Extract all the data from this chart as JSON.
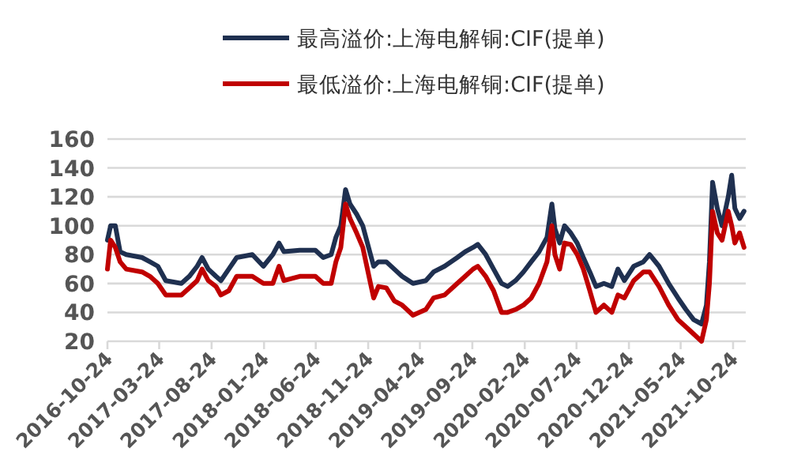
{
  "chart_data": {
    "type": "line",
    "legend": "top",
    "grid": "y",
    "xlim": [
      "2016-10-24",
      "2021-11-30"
    ],
    "ylim": [
      20,
      160
    ],
    "yticks": [
      20,
      40,
      60,
      80,
      100,
      120,
      140,
      160
    ],
    "xticks": [
      "2016-10-24",
      "2017-03-24",
      "2017-08-24",
      "2018-01-24",
      "2018-06-24",
      "2018-11-24",
      "2019-04-24",
      "2019-09-24",
      "2020-02-24",
      "2020-07-24",
      "2020-12-24",
      "2021-05-24",
      "2021-10-24"
    ],
    "x": [
      "2016-10-24",
      "2016-11-02",
      "2016-11-16",
      "2016-11-30",
      "2016-12-18",
      "2017-02-02",
      "2017-02-25",
      "2017-03-20",
      "2017-04-12",
      "2017-05-28",
      "2017-06-20",
      "2017-07-13",
      "2017-07-27",
      "2017-08-14",
      "2017-09-06",
      "2017-09-20",
      "2017-10-13",
      "2017-11-05",
      "2017-12-21",
      "2018-01-22",
      "2018-02-19",
      "2018-03-09",
      "2018-03-23",
      "2018-05-08",
      "2018-06-23",
      "2018-07-16",
      "2018-08-08",
      "2018-08-22",
      "2018-09-05",
      "2018-09-19",
      "2018-10-02",
      "2018-10-21",
      "2018-11-08",
      "2018-12-01",
      "2018-12-10",
      "2018-12-24",
      "2019-01-16",
      "2019-02-08",
      "2019-03-03",
      "2019-04-04",
      "2019-05-11",
      "2019-06-03",
      "2019-07-05",
      "2019-08-11",
      "2019-09-03",
      "2019-09-26",
      "2019-10-10",
      "2019-11-02",
      "2019-11-25",
      "2019-12-18",
      "2020-01-05",
      "2020-01-28",
      "2020-02-20",
      "2020-03-14",
      "2020-04-06",
      "2020-04-29",
      "2020-05-13",
      "2020-05-22",
      "2020-06-05",
      "2020-06-19",
      "2020-07-07",
      "2020-07-26",
      "2020-08-13",
      "2020-09-01",
      "2020-09-19",
      "2020-10-12",
      "2020-11-04",
      "2020-11-22",
      "2020-12-11",
      "2021-01-07",
      "2021-02-04",
      "2021-02-22",
      "2021-03-22",
      "2021-04-19",
      "2021-05-16",
      "2021-06-08",
      "2021-07-01",
      "2021-07-24",
      "2021-08-07",
      "2021-08-16",
      "2021-08-25",
      "2021-09-08",
      "2021-09-22",
      "2021-10-10",
      "2021-10-20",
      "2021-10-29",
      "2021-11-12",
      "2021-11-25"
    ],
    "series": [
      {
        "name": "最高溢价:上海电解铜:CIF(提单)",
        "color": "#1f3050",
        "values": [
          90,
          100,
          100,
          82,
          80,
          78,
          75,
          72,
          62,
          60,
          65,
          72,
          78,
          70,
          65,
          62,
          70,
          78,
          80,
          72,
          80,
          88,
          82,
          83,
          83,
          78,
          80,
          92,
          100,
          125,
          115,
          108,
          100,
          80,
          72,
          75,
          75,
          70,
          65,
          60,
          62,
          68,
          72,
          78,
          82,
          85,
          87,
          80,
          70,
          60,
          58,
          62,
          68,
          75,
          82,
          92,
          115,
          98,
          88,
          100,
          95,
          88,
          78,
          68,
          58,
          60,
          58,
          70,
          62,
          72,
          75,
          80,
          72,
          60,
          50,
          42,
          35,
          32,
          45,
          75,
          130,
          112,
          100,
          120,
          135,
          112,
          105,
          110
        ]
      },
      {
        "name": "最低溢价:上海电解铜:CIF(提单)",
        "color": "#c00000",
        "values": [
          70,
          90,
          85,
          75,
          70,
          68,
          65,
          60,
          52,
          52,
          57,
          62,
          70,
          62,
          58,
          52,
          55,
          65,
          65,
          60,
          60,
          72,
          62,
          65,
          65,
          60,
          60,
          75,
          85,
          115,
          105,
          95,
          85,
          60,
          50,
          58,
          57,
          48,
          45,
          38,
          42,
          50,
          52,
          60,
          65,
          70,
          72,
          65,
          55,
          40,
          40,
          42,
          45,
          50,
          60,
          75,
          100,
          80,
          70,
          88,
          87,
          80,
          70,
          55,
          40,
          45,
          40,
          52,
          50,
          62,
          68,
          68,
          58,
          45,
          35,
          30,
          25,
          20,
          35,
          60,
          110,
          95,
          90,
          110,
          100,
          88,
          95,
          85
        ]
      }
    ]
  }
}
